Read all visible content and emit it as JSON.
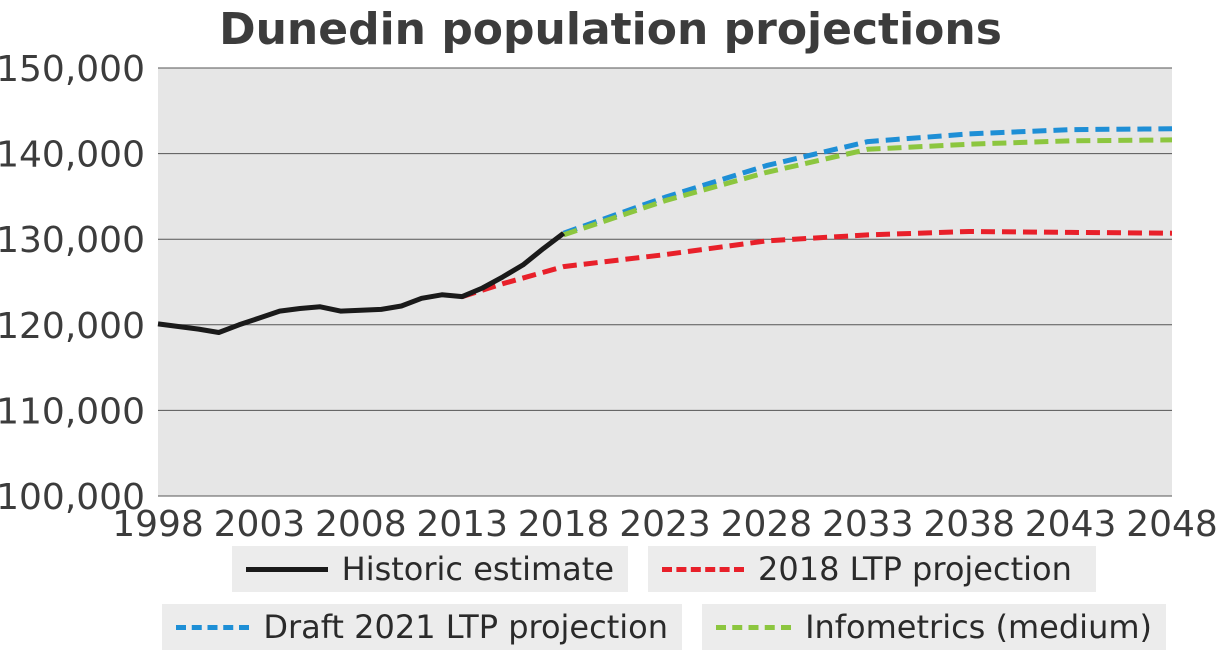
{
  "chart_data": {
    "type": "line",
    "title": "Dunedin population projections",
    "xlabel": "",
    "ylabel": "",
    "xlim": [
      1998,
      2048
    ],
    "ylim": [
      100000,
      150000
    ],
    "x_ticks": [
      "1998",
      "2003",
      "2008",
      "2013",
      "2018",
      "2023",
      "2028",
      "2033",
      "2038",
      "2043",
      "2048"
    ],
    "y_ticks": [
      "100,000",
      "110,000",
      "120,000",
      "130,000",
      "140,000",
      "150,000"
    ],
    "grid": "horizontal",
    "legend_placement": "bottom",
    "series": [
      {
        "name": "Historic estimate",
        "color": "#1a1a1a",
        "dash": "solid",
        "x": [
          1998,
          2000,
          2001,
          2002,
          2003,
          2004,
          2005,
          2006,
          2007,
          2008,
          2009,
          2010,
          2011,
          2012,
          2013,
          2014,
          2015,
          2016,
          2017,
          2018
        ],
        "y": [
          120100,
          119500,
          119100,
          120000,
          120800,
          121600,
          121900,
          122100,
          121600,
          121700,
          121800,
          122200,
          123100,
          123500,
          123300,
          124300,
          125600,
          127000,
          128900,
          130700
        ]
      },
      {
        "name": "2018 LTP projection",
        "color": "#e8202a",
        "dash": "dashed",
        "x": [
          2013,
          2015,
          2018,
          2023,
          2028,
          2033,
          2038,
          2043,
          2048
        ],
        "y": [
          123300,
          124800,
          126800,
          128200,
          129800,
          130500,
          130900,
          130800,
          130700
        ]
      },
      {
        "name": "Draft 2021 LTP projection",
        "color": "#1e8fd6",
        "dash": "dashed",
        "x": [
          2018,
          2023,
          2028,
          2033,
          2038,
          2043,
          2048
        ],
        "y": [
          130700,
          134900,
          138600,
          141400,
          142300,
          142800,
          142900
        ]
      },
      {
        "name": "Infometrics (medium)",
        "color": "#8cc63f",
        "dash": "dashed",
        "x": [
          2018,
          2023,
          2028,
          2033,
          2038,
          2043,
          2048
        ],
        "y": [
          130500,
          134500,
          137800,
          140500,
          141100,
          141500,
          141600
        ]
      }
    ]
  },
  "legend": {
    "items": [
      {
        "label": "Historic estimate",
        "color": "#1a1a1a",
        "style": "solid"
      },
      {
        "label": "2018 LTP projection",
        "color": "#e8202a",
        "style": "dashed"
      },
      {
        "label": "Draft 2021 LTP projection",
        "color": "#1e8fd6",
        "style": "dashed"
      },
      {
        "label": "Infometrics (medium)",
        "color": "#8cc63f",
        "style": "dashed"
      }
    ]
  },
  "colors": {
    "plot_background": "#e6e6e6",
    "gridline": "#555555",
    "legend_background": "#ececec",
    "text": "#3c3c3c"
  }
}
